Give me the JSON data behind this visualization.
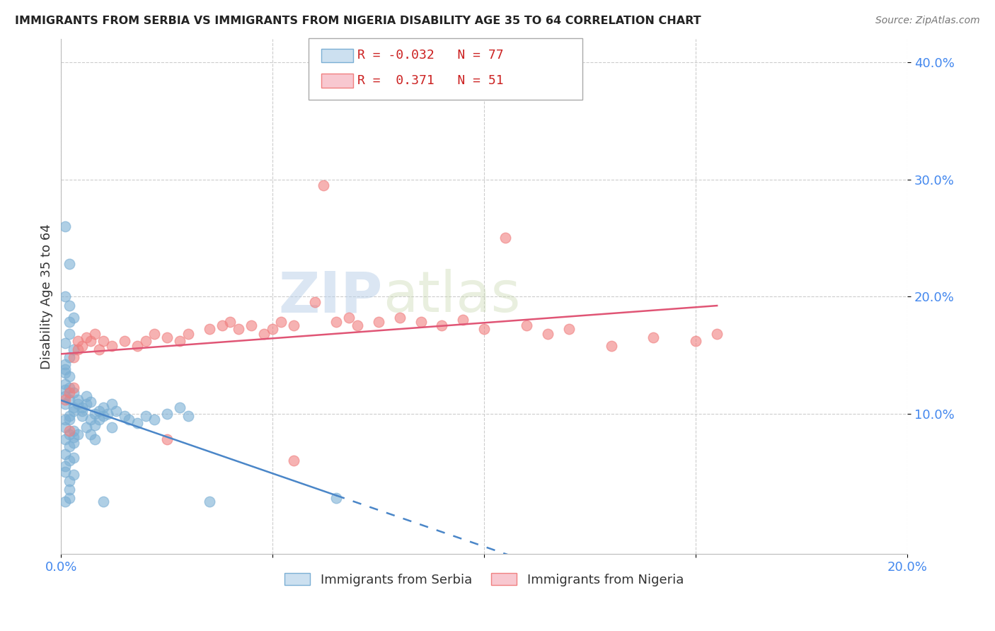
{
  "title": "IMMIGRANTS FROM SERBIA VS IMMIGRANTS FROM NIGERIA DISABILITY AGE 35 TO 64 CORRELATION CHART",
  "source": "Source: ZipAtlas.com",
  "ylabel": "Disability Age 35 to 64",
  "xlim": [
    0.0,
    0.2
  ],
  "ylim": [
    -0.02,
    0.42
  ],
  "yticks": [
    0.1,
    0.2,
    0.3,
    0.4
  ],
  "ytick_labels": [
    "10.0%",
    "20.0%",
    "30.0%",
    "40.0%"
  ],
  "xticks": [
    0.0,
    0.05,
    0.1,
    0.15,
    0.2
  ],
  "xtick_labels": [
    "0.0%",
    "",
    "",
    "",
    "20.0%"
  ],
  "serbia_color": "#7bafd4",
  "nigeria_color": "#f08080",
  "serbia_line_color": "#4a86c8",
  "nigeria_line_color": "#e05575",
  "serbia_R": -0.032,
  "serbia_N": 77,
  "nigeria_R": 0.371,
  "nigeria_N": 51,
  "legend_label_serbia": "Immigrants from Serbia",
  "legend_label_nigeria": "Immigrants from Nigeria",
  "watermark_text": "ZIP",
  "watermark_text2": "atlas",
  "serbia_scatter": [
    [
      0.001,
      0.108
    ],
    [
      0.002,
      0.095
    ],
    [
      0.002,
      0.112
    ],
    [
      0.003,
      0.102
    ],
    [
      0.001,
      0.12
    ],
    [
      0.001,
      0.115
    ],
    [
      0.002,
      0.122
    ],
    [
      0.003,
      0.118
    ],
    [
      0.002,
      0.098
    ],
    [
      0.003,
      0.105
    ],
    [
      0.001,
      0.142
    ],
    [
      0.001,
      0.135
    ],
    [
      0.002,
      0.148
    ],
    [
      0.003,
      0.155
    ],
    [
      0.001,
      0.16
    ],
    [
      0.002,
      0.168
    ],
    [
      0.002,
      0.178
    ],
    [
      0.003,
      0.182
    ],
    [
      0.002,
      0.192
    ],
    [
      0.001,
      0.2
    ],
    [
      0.001,
      0.26
    ],
    [
      0.002,
      0.228
    ],
    [
      0.001,
      0.088
    ],
    [
      0.002,
      0.082
    ],
    [
      0.001,
      0.095
    ],
    [
      0.003,
      0.085
    ],
    [
      0.001,
      0.078
    ],
    [
      0.002,
      0.072
    ],
    [
      0.003,
      0.08
    ],
    [
      0.001,
      0.065
    ],
    [
      0.002,
      0.06
    ],
    [
      0.001,
      0.055
    ],
    [
      0.003,
      0.048
    ],
    [
      0.002,
      0.042
    ],
    [
      0.002,
      0.035
    ],
    [
      0.001,
      0.025
    ],
    [
      0.004,
      0.108
    ],
    [
      0.004,
      0.112
    ],
    [
      0.005,
      0.105
    ],
    [
      0.005,
      0.098
    ],
    [
      0.005,
      0.102
    ],
    [
      0.006,
      0.108
    ],
    [
      0.006,
      0.115
    ],
    [
      0.007,
      0.11
    ],
    [
      0.007,
      0.095
    ],
    [
      0.008,
      0.1
    ],
    [
      0.008,
      0.09
    ],
    [
      0.009,
      0.095
    ],
    [
      0.009,
      0.102
    ],
    [
      0.01,
      0.098
    ],
    [
      0.01,
      0.105
    ],
    [
      0.011,
      0.1
    ],
    [
      0.012,
      0.108
    ],
    [
      0.013,
      0.102
    ],
    [
      0.015,
      0.098
    ],
    [
      0.016,
      0.095
    ],
    [
      0.018,
      0.092
    ],
    [
      0.02,
      0.098
    ],
    [
      0.022,
      0.095
    ],
    [
      0.025,
      0.1
    ],
    [
      0.028,
      0.105
    ],
    [
      0.03,
      0.098
    ],
    [
      0.001,
      0.05
    ],
    [
      0.002,
      0.028
    ],
    [
      0.035,
      0.025
    ],
    [
      0.065,
      0.028
    ],
    [
      0.001,
      0.125
    ],
    [
      0.002,
      0.132
    ],
    [
      0.001,
      0.138
    ],
    [
      0.003,
      0.075
    ],
    [
      0.004,
      0.082
    ],
    [
      0.003,
      0.062
    ],
    [
      0.006,
      0.088
    ],
    [
      0.007,
      0.082
    ],
    [
      0.008,
      0.078
    ],
    [
      0.01,
      0.025
    ],
    [
      0.012,
      0.088
    ]
  ],
  "nigeria_scatter": [
    [
      0.001,
      0.112
    ],
    [
      0.002,
      0.118
    ],
    [
      0.003,
      0.122
    ],
    [
      0.003,
      0.148
    ],
    [
      0.004,
      0.155
    ],
    [
      0.004,
      0.162
    ],
    [
      0.005,
      0.158
    ],
    [
      0.006,
      0.165
    ],
    [
      0.007,
      0.162
    ],
    [
      0.008,
      0.168
    ],
    [
      0.009,
      0.155
    ],
    [
      0.01,
      0.162
    ],
    [
      0.012,
      0.158
    ],
    [
      0.015,
      0.162
    ],
    [
      0.018,
      0.158
    ],
    [
      0.02,
      0.162
    ],
    [
      0.022,
      0.168
    ],
    [
      0.025,
      0.165
    ],
    [
      0.028,
      0.162
    ],
    [
      0.03,
      0.168
    ],
    [
      0.035,
      0.172
    ],
    [
      0.038,
      0.175
    ],
    [
      0.04,
      0.178
    ],
    [
      0.042,
      0.172
    ],
    [
      0.045,
      0.175
    ],
    [
      0.048,
      0.168
    ],
    [
      0.05,
      0.172
    ],
    [
      0.052,
      0.178
    ],
    [
      0.055,
      0.175
    ],
    [
      0.06,
      0.195
    ],
    [
      0.062,
      0.295
    ],
    [
      0.065,
      0.178
    ],
    [
      0.068,
      0.182
    ],
    [
      0.07,
      0.175
    ],
    [
      0.075,
      0.178
    ],
    [
      0.08,
      0.182
    ],
    [
      0.085,
      0.178
    ],
    [
      0.09,
      0.175
    ],
    [
      0.095,
      0.18
    ],
    [
      0.1,
      0.172
    ],
    [
      0.105,
      0.25
    ],
    [
      0.11,
      0.175
    ],
    [
      0.115,
      0.168
    ],
    [
      0.12,
      0.172
    ],
    [
      0.13,
      0.158
    ],
    [
      0.14,
      0.165
    ],
    [
      0.15,
      0.162
    ],
    [
      0.155,
      0.168
    ],
    [
      0.002,
      0.085
    ],
    [
      0.025,
      0.078
    ],
    [
      0.055,
      0.06
    ]
  ]
}
